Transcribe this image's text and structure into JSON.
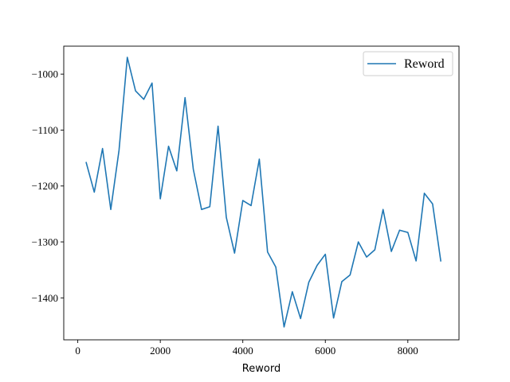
{
  "chart_data": {
    "type": "line",
    "title": "",
    "xlabel": "Reword",
    "ylabel": "",
    "xlim": [
      -340,
      9240
    ],
    "ylim": [
      -1475,
      -950
    ],
    "xticks": [
      0,
      2000,
      4000,
      6000,
      8000
    ],
    "xtick_labels": [
      "0",
      "2000",
      "4000",
      "6000",
      "8000"
    ],
    "yticks": [
      -1000,
      -1100,
      -1200,
      -1300,
      -1400
    ],
    "ytick_labels": [
      "−1000",
      "−1100",
      "−1200",
      "−1300",
      "−1400"
    ],
    "grid": false,
    "legend_position": "top-right",
    "series": [
      {
        "name": "Reword",
        "color": "#1f77b4",
        "x": [
          200,
          400,
          600,
          800,
          1000,
          1200,
          1400,
          1600,
          1800,
          2000,
          2200,
          2400,
          2600,
          2800,
          3000,
          3200,
          3400,
          3600,
          3800,
          4000,
          4200,
          4400,
          4600,
          4800,
          5000,
          5200,
          5400,
          5600,
          5800,
          6000,
          6200,
          6400,
          6600,
          6800,
          7000,
          7200,
          7400,
          7600,
          7800,
          8000,
          8200,
          8400,
          8600,
          8800
        ],
        "y": [
          -1157,
          -1211,
          -1133,
          -1242,
          -1136,
          -970,
          -1030,
          -1045,
          -1016,
          -1223,
          -1129,
          -1173,
          -1042,
          -1170,
          -1242,
          -1237,
          -1093,
          -1256,
          -1320,
          -1226,
          -1235,
          -1152,
          -1318,
          -1345,
          -1452,
          -1389,
          -1437,
          -1372,
          -1342,
          -1322,
          -1436,
          -1371,
          -1359,
          -1300,
          -1327,
          -1314,
          -1242,
          -1317,
          -1279,
          -1283,
          -1334,
          -1213,
          -1232,
          -1335
        ]
      }
    ]
  }
}
